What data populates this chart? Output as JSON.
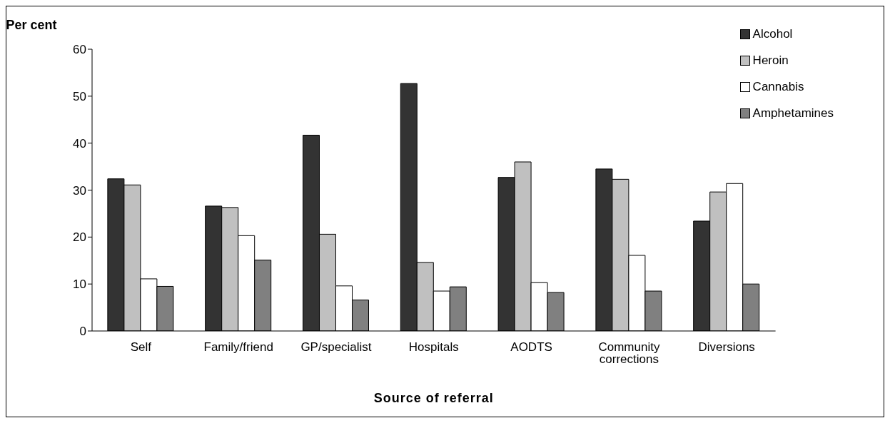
{
  "chart_data": {
    "type": "bar",
    "xlabel": "Source of referral",
    "ylabel": "Per cent",
    "categories": [
      "Self",
      "Family/friend",
      "GP/specialist",
      "Hospitals",
      "AODTS",
      "Community corrections",
      "Diversions"
    ],
    "series": [
      {
        "name": "Alcohol",
        "color": "#333333",
        "values": [
          32.4,
          26.6,
          41.7,
          52.7,
          32.7,
          34.5,
          23.4
        ]
      },
      {
        "name": "Heroin",
        "color": "#c0c0c0",
        "values": [
          31.1,
          26.3,
          20.6,
          14.6,
          36.0,
          32.3,
          29.6
        ]
      },
      {
        "name": "Cannabis",
        "color": "#ffffff",
        "values": [
          11.1,
          20.3,
          9.6,
          8.5,
          10.3,
          16.1,
          31.4
        ]
      },
      {
        "name": "Amphetamines",
        "color": "#808080",
        "values": [
          9.5,
          15.1,
          6.6,
          9.4,
          8.2,
          8.5,
          10.0
        ]
      }
    ],
    "ylim": [
      0,
      60
    ],
    "yticks": [
      0,
      10,
      20,
      30,
      40,
      50,
      60
    ],
    "grid": false,
    "legend": "top right"
  }
}
